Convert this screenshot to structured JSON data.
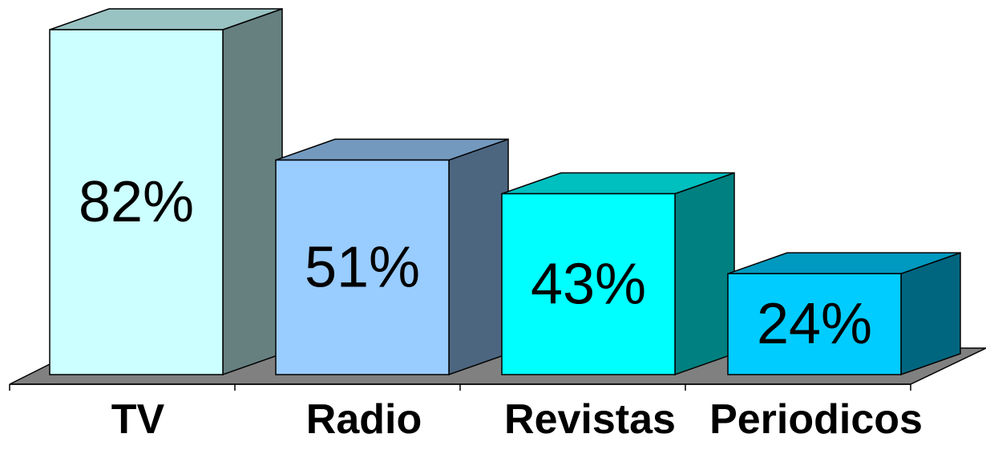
{
  "chart_data": {
    "type": "bar",
    "style": "3d",
    "categories": [
      "TV",
      "Radio",
      "Revistas",
      "Periodicos"
    ],
    "values": [
      82,
      51,
      43,
      24
    ],
    "data_labels": [
      "82%",
      "51%",
      "43%",
      "24%"
    ],
    "ylim": [
      0,
      82
    ],
    "grid": false,
    "legend": "none",
    "bar_colors": [
      {
        "front": "#CCFFFF",
        "top": "#99C2C2",
        "side": "#668080"
      },
      {
        "front": "#99CCFF",
        "top": "#7399BF",
        "side": "#4D6680"
      },
      {
        "front": "#00FFFF",
        "top": "#00BFBF",
        "side": "#008080"
      },
      {
        "front": "#00CCFF",
        "top": "#0099BF",
        "side": "#006680"
      }
    ],
    "floor_color": "#808080"
  }
}
